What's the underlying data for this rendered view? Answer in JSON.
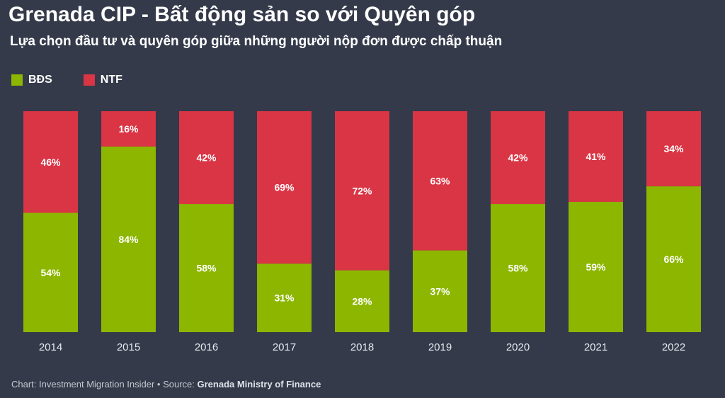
{
  "title": "Grenada CIP - Bất động sản so với Quyên góp",
  "subtitle": "Lựa chọn đầu tư và quyên góp giữa những người nộp đơn được chấp thuận",
  "footer": {
    "prefix": "Chart: Investment Migration Insider • Source: ",
    "source": "Grenada Ministry of Finance"
  },
  "chart_data": {
    "type": "bar",
    "stacked": true,
    "normalized_percent": true,
    "categories": [
      "2014",
      "2015",
      "2016",
      "2017",
      "2018",
      "2019",
      "2020",
      "2021",
      "2022"
    ],
    "series": [
      {
        "name": "BĐS",
        "color": "#8db600",
        "values": [
          54,
          84,
          58,
          31,
          28,
          37,
          58,
          59,
          66
        ],
        "labels": [
          "54%",
          "84%",
          "58%",
          "31%",
          "28%",
          "37%",
          "58%",
          "59%",
          "66%"
        ]
      },
      {
        "name": "NTF",
        "color": "#d93545",
        "values": [
          46,
          16,
          42,
          69,
          72,
          63,
          42,
          41,
          34
        ],
        "labels": [
          "46%",
          "16%",
          "42%",
          "69%",
          "72%",
          "63%",
          "42%",
          "41%",
          "34%"
        ]
      }
    ],
    "ylim": [
      0,
      100
    ],
    "legend_position": "top-left",
    "grid": false
  }
}
